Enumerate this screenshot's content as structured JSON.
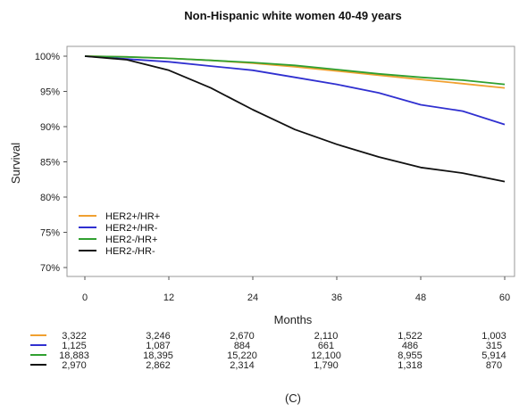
{
  "chart_data": {
    "type": "line",
    "title": "Non-Hispanic white women 40-49 years",
    "xlabel": "Months",
    "ylabel": "Survival",
    "xlim": [
      0,
      60
    ],
    "ylim": [
      70,
      100
    ],
    "x_ticks": [
      "0",
      "12",
      "24",
      "36",
      "48",
      "60"
    ],
    "y_ticks": [
      "70%",
      "75%",
      "80%",
      "85%",
      "90%",
      "95%",
      "100%"
    ],
    "legend_position": "bottom-left",
    "series": [
      {
        "name": "HER2+/HR+",
        "color": "#f0a030",
        "x": [
          0,
          6,
          12,
          18,
          24,
          30,
          36,
          42,
          48,
          54,
          60
        ],
        "y": [
          100,
          99.9,
          99.7,
          99.4,
          99.0,
          98.5,
          97.9,
          97.3,
          96.7,
          96.1,
          95.5
        ]
      },
      {
        "name": "HER2+/HR-",
        "color": "#3030d0",
        "x": [
          0,
          6,
          12,
          18,
          24,
          30,
          36,
          42,
          48,
          54,
          60
        ],
        "y": [
          100,
          99.6,
          99.2,
          98.6,
          98.0,
          97.0,
          96.0,
          94.8,
          93.1,
          92.2,
          90.3
        ]
      },
      {
        "name": "HER2-/HR+",
        "color": "#30a030",
        "x": [
          0,
          6,
          12,
          18,
          24,
          30,
          36,
          42,
          48,
          54,
          60
        ],
        "y": [
          100,
          99.9,
          99.7,
          99.4,
          99.1,
          98.7,
          98.1,
          97.5,
          97.0,
          96.6,
          96.0
        ]
      },
      {
        "name": "HER2-/HR-",
        "color": "#111111",
        "x": [
          0,
          6,
          12,
          18,
          24,
          30,
          36,
          42,
          48,
          54,
          60
        ],
        "y": [
          100,
          99.5,
          98.0,
          95.5,
          92.4,
          89.6,
          87.5,
          85.7,
          84.2,
          83.4,
          82.2
        ]
      }
    ],
    "risk_table": {
      "times": [
        "0",
        "12",
        "24",
        "36",
        "48",
        "60"
      ],
      "rows": [
        {
          "color": "#f0a030",
          "values": [
            "3,322",
            "3,246",
            "2,670",
            "2,110",
            "1,522",
            "1,003"
          ]
        },
        {
          "color": "#3030d0",
          "values": [
            "1,125",
            "1,087",
            "884",
            "661",
            "486",
            "315"
          ]
        },
        {
          "color": "#30a030",
          "values": [
            "18,883",
            "18,395",
            "15,220",
            "12,100",
            "8,955",
            "5,914"
          ]
        },
        {
          "color": "#111111",
          "values": [
            "2,970",
            "2,862",
            "2,314",
            "1,790",
            "1,318",
            "870"
          ]
        }
      ]
    },
    "caption": "(C)"
  }
}
